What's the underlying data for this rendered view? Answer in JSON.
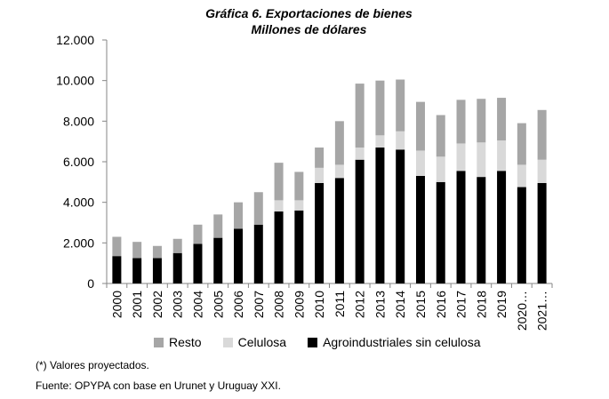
{
  "chart_data": {
    "type": "bar",
    "stacked": true,
    "title": "Gráfica 6. Exportaciones de bienes",
    "subtitle": "Millones de dólares",
    "xlabel": "",
    "ylabel": "",
    "categories": [
      "2000",
      "2001",
      "2002",
      "2003",
      "2004",
      "2005",
      "2006",
      "2007",
      "2008",
      "2009",
      "2010",
      "2011",
      "2012",
      "2013",
      "2014",
      "2015",
      "2016",
      "2017",
      "2018",
      "2019",
      "2020…",
      "2021…"
    ],
    "ylim": [
      0,
      12000
    ],
    "yticks": [
      0,
      2000,
      4000,
      6000,
      8000,
      10000,
      12000
    ],
    "ytick_labels": [
      "0",
      "2.000",
      "4.000",
      "6.000",
      "8.000",
      "10.000",
      "12.000"
    ],
    "grid": false,
    "legend_position": "bottom",
    "series": [
      {
        "name": "Agroindustriales sin celulosa",
        "color": "#000000",
        "values": [
          1350,
          1250,
          1250,
          1500,
          1950,
          2250,
          2700,
          2900,
          3550,
          3600,
          4950,
          5200,
          6100,
          6700,
          6600,
          5300,
          5000,
          5550,
          5250,
          5550,
          4750,
          4950
        ]
      },
      {
        "name": "Celulosa",
        "color": "#d9d9d9",
        "values": [
          0,
          0,
          0,
          0,
          0,
          0,
          0,
          0,
          550,
          500,
          750,
          650,
          600,
          600,
          900,
          1250,
          1250,
          1350,
          1700,
          1500,
          1100,
          1150
        ]
      },
      {
        "name": "Resto",
        "color": "#a6a6a6",
        "values": [
          950,
          800,
          600,
          700,
          950,
          1150,
          1300,
          1600,
          1850,
          1400,
          1000,
          2150,
          3150,
          2700,
          2550,
          2400,
          2050,
          2150,
          2150,
          2100,
          2050,
          2450
        ]
      }
    ]
  },
  "legend": {
    "items": [
      {
        "label": "Resto",
        "color": "#a6a6a6"
      },
      {
        "label": "Celulosa",
        "color": "#d9d9d9"
      },
      {
        "label": "Agroindustriales sin celulosa",
        "color": "#000000"
      }
    ]
  },
  "notes": {
    "projected": "(*) Valores proyectados.",
    "source": "Fuente: OPYPA con base en Urunet y Uruguay XXI."
  }
}
